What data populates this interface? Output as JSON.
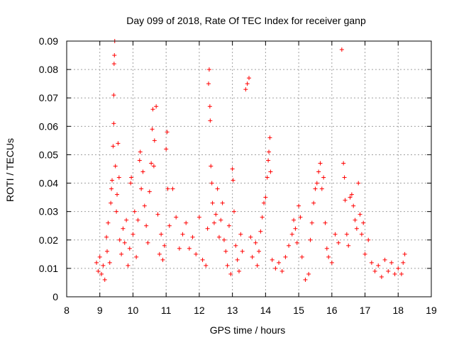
{
  "chart_data": {
    "type": "scatter",
    "title": "Day 099 of 2018, Rate Of TEC Index for receiver ganp",
    "xlabel": "GPS time / hours",
    "ylabel": "ROTI / TECUs",
    "xlim": [
      8,
      19
    ],
    "ylim": [
      0,
      0.09
    ],
    "x_ticks": [
      8,
      9,
      10,
      11,
      12,
      13,
      14,
      15,
      16,
      17,
      18,
      19
    ],
    "x_tick_labels": [
      "8",
      "9",
      "10",
      "11",
      "12",
      "13",
      "14",
      "15",
      "16",
      "17",
      "18",
      "19"
    ],
    "y_ticks": [
      0,
      0.01,
      0.02,
      0.03,
      0.04,
      0.05,
      0.06,
      0.07,
      0.08,
      0.09
    ],
    "y_tick_labels": [
      "0",
      "0.01",
      "0.02",
      "0.03",
      "0.04",
      "0.05",
      "0.06",
      "0.07",
      "0.08",
      "0.09"
    ],
    "grid": true,
    "marker": "plus",
    "color": "#ff0000",
    "series": [
      {
        "name": "ROTI",
        "points": [
          [
            8.9,
            0.012
          ],
          [
            8.95,
            0.009
          ],
          [
            9.0,
            0.014
          ],
          [
            9.05,
            0.008
          ],
          [
            9.1,
            0.011
          ],
          [
            9.15,
            0.006
          ],
          [
            9.2,
            0.021
          ],
          [
            9.22,
            0.016
          ],
          [
            9.25,
            0.026
          ],
          [
            9.3,
            0.012
          ],
          [
            9.33,
            0.033
          ],
          [
            9.35,
            0.038
          ],
          [
            9.37,
            0.041
          ],
          [
            9.4,
            0.053
          ],
          [
            9.42,
            0.061
          ],
          [
            9.42,
            0.071
          ],
          [
            9.43,
            0.082
          ],
          [
            9.44,
            0.085
          ],
          [
            9.45,
            0.09
          ],
          [
            9.47,
            0.046
          ],
          [
            9.5,
            0.03
          ],
          [
            9.52,
            0.036
          ],
          [
            9.55,
            0.054
          ],
          [
            9.58,
            0.042
          ],
          [
            9.6,
            0.02
          ],
          [
            9.65,
            0.015
          ],
          [
            9.7,
            0.024
          ],
          [
            9.75,
            0.019
          ],
          [
            9.8,
            0.027
          ],
          [
            9.85,
            0.011
          ],
          [
            9.9,
            0.017
          ],
          [
            9.93,
            0.04
          ],
          [
            9.95,
            0.042
          ],
          [
            10.0,
            0.022
          ],
          [
            10.05,
            0.03
          ],
          [
            10.1,
            0.014
          ],
          [
            10.15,
            0.027
          ],
          [
            10.2,
            0.048
          ],
          [
            10.22,
            0.051
          ],
          [
            10.25,
            0.038
          ],
          [
            10.3,
            0.044
          ],
          [
            10.35,
            0.032
          ],
          [
            10.4,
            0.025
          ],
          [
            10.45,
            0.019
          ],
          [
            10.5,
            0.037
          ],
          [
            10.55,
            0.047
          ],
          [
            10.58,
            0.059
          ],
          [
            10.6,
            0.066
          ],
          [
            10.63,
            0.046
          ],
          [
            10.65,
            0.055
          ],
          [
            10.7,
            0.067
          ],
          [
            10.75,
            0.029
          ],
          [
            10.8,
            0.015
          ],
          [
            10.85,
            0.022
          ],
          [
            10.9,
            0.013
          ],
          [
            10.95,
            0.018
          ],
          [
            11.0,
            0.052
          ],
          [
            11.03,
            0.058
          ],
          [
            11.05,
            0.038
          ],
          [
            11.1,
            0.025
          ],
          [
            11.2,
            0.038
          ],
          [
            11.3,
            0.028
          ],
          [
            11.4,
            0.017
          ],
          [
            11.5,
            0.022
          ],
          [
            11.6,
            0.026
          ],
          [
            11.7,
            0.017
          ],
          [
            11.8,
            0.021
          ],
          [
            11.9,
            0.015
          ],
          [
            12.0,
            0.028
          ],
          [
            12.1,
            0.013
          ],
          [
            12.2,
            0.011
          ],
          [
            12.25,
            0.024
          ],
          [
            12.28,
            0.075
          ],
          [
            12.3,
            0.08
          ],
          [
            12.32,
            0.067
          ],
          [
            12.33,
            0.062
          ],
          [
            12.35,
            0.046
          ],
          [
            12.38,
            0.04
          ],
          [
            12.4,
            0.033
          ],
          [
            12.45,
            0.026
          ],
          [
            12.5,
            0.029
          ],
          [
            12.55,
            0.038
          ],
          [
            12.6,
            0.021
          ],
          [
            12.65,
            0.027
          ],
          [
            12.7,
            0.033
          ],
          [
            12.75,
            0.02
          ],
          [
            12.8,
            0.016
          ],
          [
            12.85,
            0.011
          ],
          [
            12.9,
            0.025
          ],
          [
            12.95,
            0.008
          ],
          [
            13.0,
            0.045
          ],
          [
            13.02,
            0.041
          ],
          [
            13.05,
            0.03
          ],
          [
            13.1,
            0.018
          ],
          [
            13.15,
            0.013
          ],
          [
            13.2,
            0.009
          ],
          [
            13.25,
            0.022
          ],
          [
            13.3,
            0.016
          ],
          [
            13.4,
            0.073
          ],
          [
            13.45,
            0.075
          ],
          [
            13.5,
            0.077
          ],
          [
            13.55,
            0.021
          ],
          [
            13.6,
            0.014
          ],
          [
            13.7,
            0.019
          ],
          [
            13.75,
            0.011
          ],
          [
            13.8,
            0.016
          ],
          [
            13.85,
            0.023
          ],
          [
            13.9,
            0.028
          ],
          [
            13.95,
            0.033
          ],
          [
            14.0,
            0.035
          ],
          [
            14.05,
            0.042
          ],
          [
            14.08,
            0.048
          ],
          [
            14.1,
            0.051
          ],
          [
            14.13,
            0.056
          ],
          [
            14.15,
            0.044
          ],
          [
            14.2,
            0.013
          ],
          [
            14.3,
            0.01
          ],
          [
            14.4,
            0.012
          ],
          [
            14.5,
            0.009
          ],
          [
            14.6,
            0.014
          ],
          [
            14.7,
            0.018
          ],
          [
            14.8,
            0.022
          ],
          [
            14.85,
            0.027
          ],
          [
            14.9,
            0.024
          ],
          [
            14.95,
            0.019
          ],
          [
            15.0,
            0.032
          ],
          [
            15.05,
            0.028
          ],
          [
            15.1,
            0.014
          ],
          [
            15.2,
            0.006
          ],
          [
            15.3,
            0.008
          ],
          [
            15.35,
            0.02
          ],
          [
            15.4,
            0.026
          ],
          [
            15.45,
            0.033
          ],
          [
            15.5,
            0.038
          ],
          [
            15.55,
            0.04
          ],
          [
            15.6,
            0.044
          ],
          [
            15.65,
            0.047
          ],
          [
            15.7,
            0.038
          ],
          [
            15.75,
            0.042
          ],
          [
            15.8,
            0.026
          ],
          [
            15.85,
            0.017
          ],
          [
            15.9,
            0.014
          ],
          [
            16.0,
            0.012
          ],
          [
            16.1,
            0.022
          ],
          [
            16.2,
            0.019
          ],
          [
            16.3,
            0.087
          ],
          [
            16.35,
            0.047
          ],
          [
            16.38,
            0.042
          ],
          [
            16.4,
            0.034
          ],
          [
            16.45,
            0.022
          ],
          [
            16.5,
            0.018
          ],
          [
            16.55,
            0.035
          ],
          [
            16.6,
            0.036
          ],
          [
            16.65,
            0.032
          ],
          [
            16.7,
            0.027
          ],
          [
            16.75,
            0.024
          ],
          [
            16.8,
            0.04
          ],
          [
            16.85,
            0.029
          ],
          [
            16.9,
            0.022
          ],
          [
            16.95,
            0.026
          ],
          [
            17.0,
            0.015
          ],
          [
            17.1,
            0.02
          ],
          [
            17.2,
            0.012
          ],
          [
            17.3,
            0.009
          ],
          [
            17.4,
            0.011
          ],
          [
            17.5,
            0.007
          ],
          [
            17.6,
            0.013
          ],
          [
            17.7,
            0.009
          ],
          [
            17.8,
            0.012
          ],
          [
            17.9,
            0.008
          ],
          [
            18.0,
            0.01
          ],
          [
            18.1,
            0.008
          ],
          [
            18.15,
            0.012
          ],
          [
            18.2,
            0.015
          ]
        ]
      }
    ]
  }
}
